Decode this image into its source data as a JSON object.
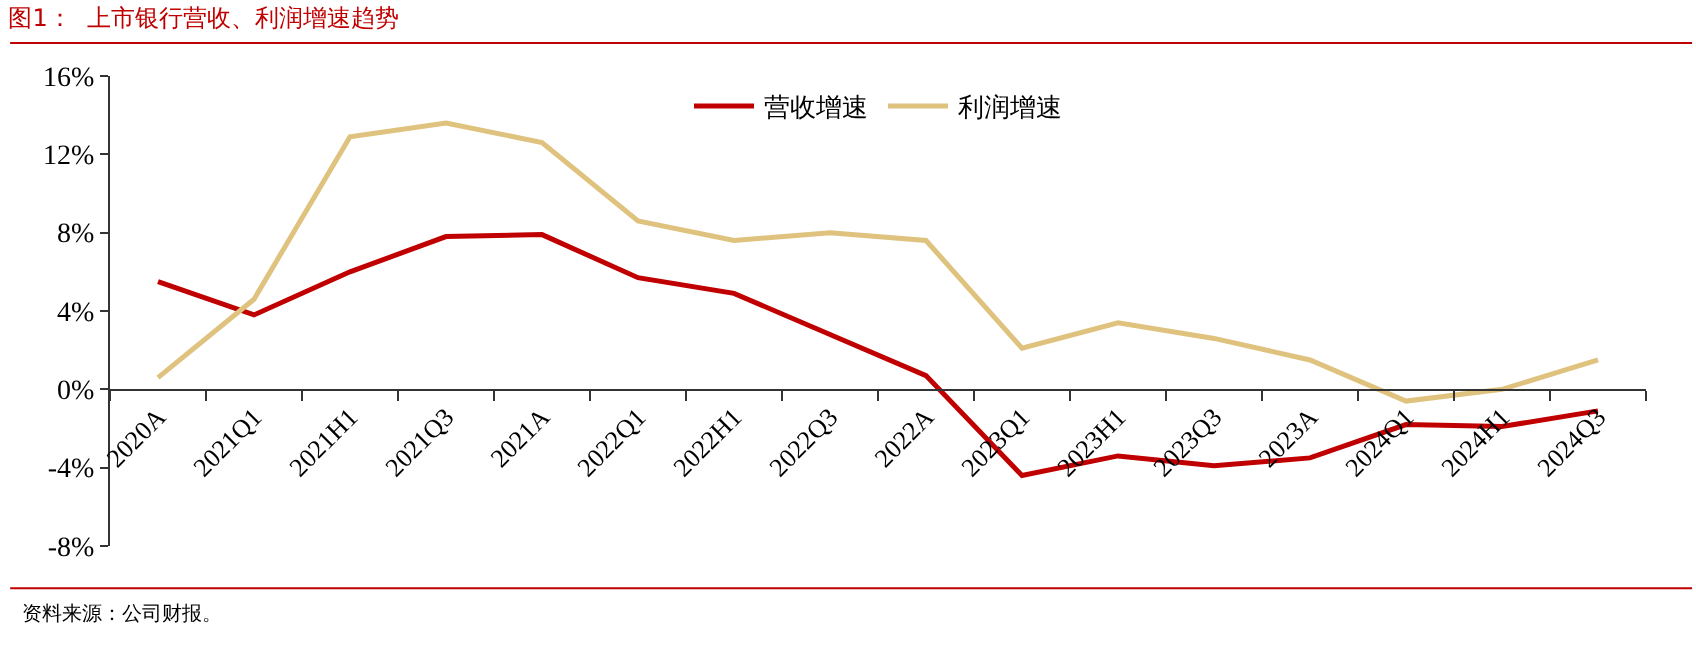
{
  "chart_data": {
    "type": "line",
    "title": "图1：  上市银行营收、利润增速趋势",
    "categories": [
      "2020A",
      "2021Q1",
      "2021H1",
      "2021Q3",
      "2021A",
      "2022Q1",
      "2022H1",
      "2022Q3",
      "2022A",
      "2023Q1",
      "2023H1",
      "2023Q3",
      "2023A",
      "2024Q1",
      "2024H1",
      "2024Q3"
    ],
    "series": [
      {
        "name": "营收增速",
        "color": "#c00000",
        "values": [
          5.5,
          3.8,
          6.0,
          7.8,
          7.9,
          5.7,
          4.9,
          2.8,
          0.7,
          -4.4,
          -3.4,
          -3.9,
          -3.5,
          -1.8,
          -1.9,
          -1.1
        ]
      },
      {
        "name": "利润增速",
        "color": "#dfc27d",
        "values": [
          0.6,
          4.6,
          12.9,
          13.6,
          12.6,
          8.6,
          7.6,
          8.0,
          7.6,
          2.1,
          3.4,
          2.6,
          1.5,
          -0.6,
          0.0,
          1.5
        ]
      }
    ],
    "ylim": [
      -8,
      16
    ],
    "yticks": [
      {
        "value": -8,
        "label": "-8%"
      },
      {
        "value": -4,
        "label": "-4%"
      },
      {
        "value": 0,
        "label": "0%"
      },
      {
        "value": 4,
        "label": "4%"
      },
      {
        "value": 8,
        "label": "8%"
      },
      {
        "value": 12,
        "label": "12%"
      },
      {
        "value": 16,
        "label": "16%"
      }
    ],
    "legend": "top",
    "marker": "none",
    "line_style": "solid",
    "annotations": [
      "资料来源：公司财报。"
    ]
  }
}
